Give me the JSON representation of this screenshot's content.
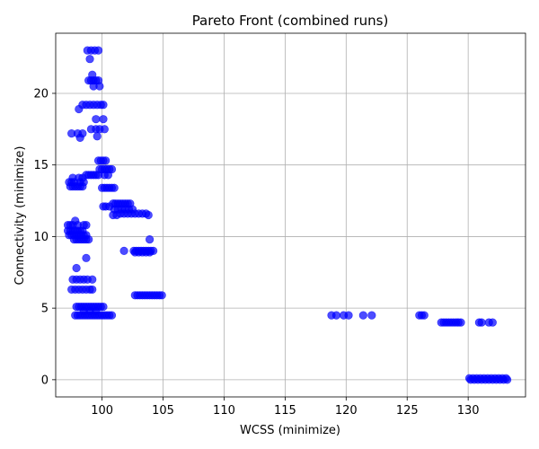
{
  "chart_data": {
    "type": "scatter",
    "title": "Pareto Front (combined runs)",
    "xlabel": "WCSS (minimize)",
    "ylabel": "Connectivity (minimize)",
    "xlim": [
      96.2,
      134.7
    ],
    "ylim": [
      -1.2,
      24.2
    ],
    "xticks": [
      100,
      105,
      110,
      115,
      120,
      125,
      130
    ],
    "yticks": [
      0,
      5,
      10,
      15,
      20
    ],
    "grid": true,
    "marker_color": "#0000ff",
    "marker_opacity": 0.7,
    "groups": [
      {
        "y": 23.0,
        "x": [
          98.8,
          99.1,
          99.4,
          99.7
        ]
      },
      {
        "y": 22.4,
        "x": [
          99.0
        ]
      },
      {
        "y": 21.3,
        "x": [
          99.2
        ]
      },
      {
        "y": 20.9,
        "x": [
          98.9,
          99.1,
          99.3,
          99.5,
          99.7
        ]
      },
      {
        "y": 20.5,
        "x": [
          99.3,
          99.8
        ]
      },
      {
        "y": 19.2,
        "x": [
          98.4,
          98.7,
          99.0,
          99.3,
          99.6,
          99.9,
          100.1
        ]
      },
      {
        "y": 18.9,
        "x": [
          98.1
        ]
      },
      {
        "y": 18.2,
        "x": [
          99.5,
          100.1
        ]
      },
      {
        "y": 17.5,
        "x": [
          99.1,
          99.5,
          99.8,
          100.2
        ]
      },
      {
        "y": 17.2,
        "x": [
          97.5,
          98.0,
          98.4
        ]
      },
      {
        "y": 17.0,
        "x": [
          99.6
        ]
      },
      {
        "y": 16.9,
        "x": [
          98.2
        ]
      },
      {
        "y": 15.3,
        "x": [
          99.7,
          99.9,
          100.1,
          100.3
        ]
      },
      {
        "y": 14.7,
        "x": [
          99.8,
          100.0,
          100.2,
          100.4,
          100.6,
          100.8
        ]
      },
      {
        "y": 14.3,
        "x": [
          98.7,
          98.9,
          99.1,
          99.3,
          99.5,
          99.7,
          100.2,
          100.5
        ]
      },
      {
        "y": 14.1,
        "x": [
          97.6,
          98.1,
          98.4
        ]
      },
      {
        "y": 13.8,
        "x": [
          97.3,
          97.5,
          97.7,
          98.2,
          98.5
        ]
      },
      {
        "y": 13.5,
        "x": [
          97.4,
          97.6,
          97.8,
          98.0,
          98.2,
          98.4
        ]
      },
      {
        "y": 13.4,
        "x": [
          100.0,
          100.2,
          100.4,
          100.6,
          100.8,
          101.0
        ]
      },
      {
        "y": 12.3,
        "x": [
          100.9,
          101.1,
          101.3,
          101.5,
          101.7,
          101.9,
          102.1,
          102.3
        ]
      },
      {
        "y": 12.1,
        "x": [
          100.1,
          100.3,
          100.6
        ]
      },
      {
        "y": 11.9,
        "x": [
          101.0,
          101.3,
          101.6,
          101.9,
          102.2,
          102.5
        ]
      },
      {
        "y": 11.6,
        "x": [
          101.5,
          101.8,
          102.1,
          102.4,
          102.7,
          103.0,
          103.3,
          103.6
        ]
      },
      {
        "y": 11.5,
        "x": [
          100.9,
          101.2,
          103.8
        ]
      },
      {
        "y": 11.1,
        "x": [
          97.8
        ]
      },
      {
        "y": 10.8,
        "x": [
          97.2,
          97.4,
          97.6,
          98.0,
          98.5,
          98.7
        ]
      },
      {
        "y": 10.4,
        "x": [
          97.2,
          97.4,
          97.6,
          97.8,
          98.0,
          98.2,
          98.4
        ]
      },
      {
        "y": 10.1,
        "x": [
          97.3,
          97.5,
          97.7,
          97.9,
          98.1,
          98.3,
          98.5,
          98.7
        ]
      },
      {
        "y": 9.8,
        "x": [
          97.7,
          97.9,
          98.1,
          98.3,
          98.5,
          98.7,
          98.9,
          103.9
        ]
      },
      {
        "y": 9.0,
        "x": [
          101.8,
          102.6,
          102.8,
          103.0,
          103.2,
          103.4,
          103.6,
          103.8,
          104.0,
          104.2
        ]
      },
      {
        "y": 8.9,
        "x": [
          102.7,
          103.0,
          103.3,
          103.6,
          103.9
        ]
      },
      {
        "y": 8.5,
        "x": [
          98.7
        ]
      },
      {
        "y": 7.8,
        "x": [
          97.9
        ]
      },
      {
        "y": 7.0,
        "x": [
          97.6,
          97.9,
          98.2,
          98.5,
          98.8,
          99.2
        ]
      },
      {
        "y": 6.3,
        "x": [
          97.5,
          97.8,
          98.1,
          98.4,
          98.7,
          99.0,
          99.2
        ]
      },
      {
        "y": 5.9,
        "x": [
          102.7,
          102.9,
          103.1,
          103.3,
          103.5,
          103.7,
          103.9,
          104.1,
          104.3,
          104.5,
          104.7,
          104.9
        ]
      },
      {
        "y": 5.1,
        "x": [
          97.9,
          98.1,
          98.3,
          98.5,
          98.7,
          98.9,
          99.1,
          99.3,
          99.5,
          99.7,
          99.9,
          100.1
        ]
      },
      {
        "y": 4.8,
        "x": [
          98.5,
          99.0,
          99.5
        ]
      },
      {
        "y": 4.5,
        "x": [
          97.8,
          98.0,
          98.2,
          98.4,
          98.6,
          98.8,
          99.0,
          99.2,
          99.4,
          99.6,
          99.8,
          100.0,
          100.2,
          100.4,
          100.6,
          100.8,
          118.8,
          119.2,
          119.8,
          120.2,
          121.4,
          122.1,
          126.0,
          126.2,
          126.4
        ]
      },
      {
        "y": 4.0,
        "x": [
          127.8,
          128.0,
          128.2,
          128.4,
          128.6,
          128.8,
          129.0,
          129.2,
          129.4,
          130.9,
          131.1,
          131.7,
          132.0
        ]
      },
      {
        "y": 0.1,
        "x": [
          130.1,
          130.4,
          130.7,
          131.0,
          131.3,
          131.6,
          131.9,
          132.2,
          132.5,
          132.8,
          133.1
        ]
      },
      {
        "y": 0.0,
        "x": [
          130.2,
          130.5,
          130.8,
          131.1,
          131.4,
          131.7,
          132.0,
          132.3,
          132.6,
          132.9,
          133.2
        ]
      }
    ]
  }
}
